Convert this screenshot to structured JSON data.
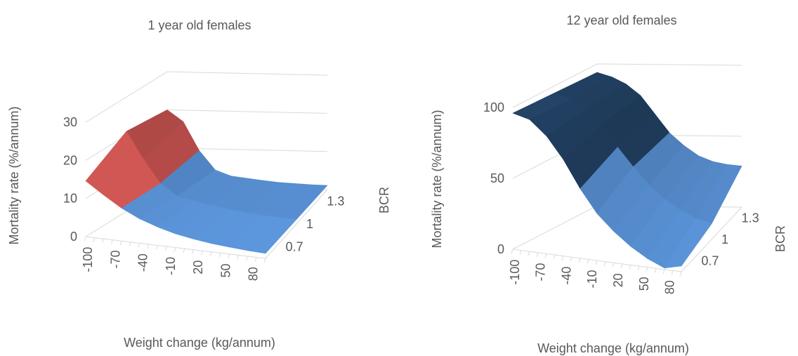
{
  "chart_data": [
    {
      "type": "surface",
      "title": "1 year old females",
      "xlabel": "Weight change (kg/annum)",
      "ylabel": "Mortality rate (%/annum)",
      "zlabel": "BCR",
      "x_ticks": [
        "-100",
        "-70",
        "-40",
        "-10",
        "20",
        "50",
        "80"
      ],
      "z_ticks": [
        "0.7",
        "1",
        "1.3"
      ],
      "y_ticks": [
        "0",
        "10",
        "20",
        "30"
      ],
      "ylim": [
        0,
        35
      ],
      "x": [
        -100,
        -80,
        -60,
        -40,
        -20,
        0,
        20,
        40,
        60,
        80,
        100
      ],
      "bcr": [
        0.7,
        1.0,
        1.3
      ],
      "series": [
        {
          "values": [
            14.6,
            11.5,
            8.6,
            6.4,
            4.8,
            3.6,
            2.8,
            2.2,
            1.8,
            1.5,
            1.3
          ]
        },
        {
          "values": [
            21.0,
            14.0,
            8.0,
            5.0,
            4.0,
            3.2,
            2.5,
            2.0,
            1.6,
            1.4,
            1.2
          ]
        },
        {
          "values": [
            20.0,
            17.0,
            9.5,
            4.5,
            3.0,
            2.5,
            2.0,
            1.6,
            1.4,
            1.2,
            1.1
          ]
        }
      ],
      "band_colors": [
        "#4f81bd",
        "#c0504d",
        "#9bbb59"
      ],
      "band_edges": [
        0,
        10,
        20,
        30
      ]
    },
    {
      "type": "surface",
      "title": "12 year old females",
      "xlabel": "Weight change (kg/annum)",
      "ylabel": "Mortality rate (%/annum)",
      "zlabel": "BCR",
      "x_ticks": [
        "-100",
        "-70",
        "-40",
        "-10",
        "20",
        "50",
        "80"
      ],
      "z_ticks": [
        "0.7",
        "1",
        "1.3"
      ],
      "y_ticks": [
        "0",
        "50",
        "100"
      ],
      "ylim": [
        0,
        100
      ],
      "x": [
        -100,
        -80,
        -60,
        -40,
        -20,
        0,
        20,
        40,
        60,
        80,
        100
      ],
      "bcr": [
        0.7,
        1.0,
        1.3
      ],
      "series": [
        {
          "values": [
            96,
            93,
            83,
            68,
            49,
            33,
            22,
            13,
            6,
            1,
            4
          ]
        },
        {
          "values": [
            95,
            91,
            85,
            75,
            60,
            47,
            35,
            26,
            19,
            14,
            11
          ]
        },
        {
          "values": [
            94,
            91,
            86,
            78,
            65,
            52,
            43,
            36,
            32,
            30,
            29
          ]
        }
      ],
      "band_colors": [
        "#4f81bd",
        "#1f3b5a",
        "#c0504d"
      ],
      "band_edges": [
        0,
        50,
        100
      ]
    }
  ]
}
